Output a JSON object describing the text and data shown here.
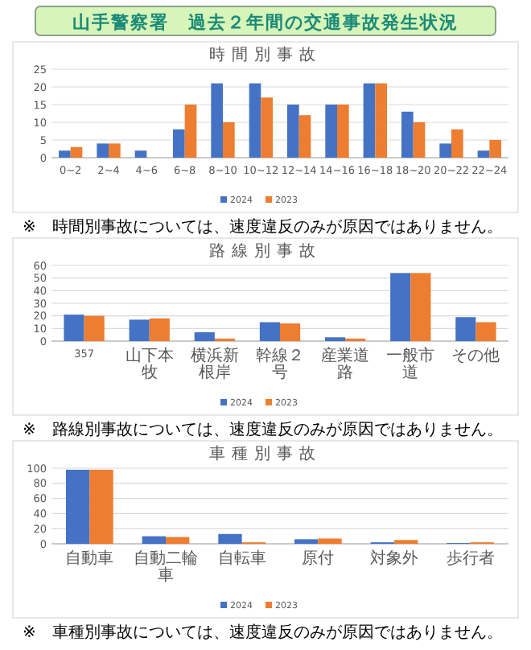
{
  "chart_data": [
    {
      "type": "bar",
      "title": "山手警察署　過去２年間の交通事故発生状況",
      "subtitle": "時間別事故",
      "categories": [
        "0~2",
        "2~4",
        "4~6",
        "6~8",
        "8~10",
        "10~12",
        "12~14",
        "14~16",
        "16~18",
        "18~20",
        "20~22",
        "22~24"
      ],
      "series": [
        {
          "name": "2024",
          "color": "#4472c4",
          "values": [
            2,
            4,
            2,
            8,
            21,
            21,
            15,
            15,
            21,
            13,
            4,
            2
          ]
        },
        {
          "name": "2023",
          "color": "#ed7d31",
          "values": [
            3,
            4,
            0,
            15,
            10,
            17,
            12,
            15,
            21,
            10,
            8,
            5
          ]
        }
      ],
      "ylim": [
        0,
        25
      ],
      "yticks": [
        0,
        5,
        10,
        15,
        20,
        25
      ],
      "grid": "y",
      "legend": "bottom",
      "annotations": [
        "※　時間別事故については、速度違反のみが原因ではありません。"
      ]
    },
    {
      "type": "bar",
      "subtitle": "路線別事故",
      "categories": [
        "357",
        "山下本牧",
        "横浜新根岸",
        "幹線２号",
        "産業道路",
        "一般市道",
        "その他"
      ],
      "series": [
        {
          "name": "2024",
          "color": "#4472c4",
          "values": [
            21,
            17,
            7,
            15,
            3,
            54,
            19
          ]
        },
        {
          "name": "2023",
          "color": "#ed7d31",
          "values": [
            20,
            18,
            2,
            14,
            2,
            54,
            15
          ]
        }
      ],
      "ylim": [
        0,
        60
      ],
      "yticks": [
        0,
        10,
        20,
        30,
        40,
        50,
        60
      ],
      "grid": "y",
      "legend": "bottom",
      "annotations": [
        "※　路線別事故については、速度違反のみが原因ではありません。"
      ]
    },
    {
      "type": "bar",
      "subtitle": "車種別事故",
      "categories": [
        "自動車",
        "自動二輪車",
        "自転車",
        "原付",
        "対象外",
        "歩行者"
      ],
      "series": [
        {
          "name": "2024",
          "color": "#4472c4",
          "values": [
            98,
            10,
            13,
            6,
            2,
            1
          ]
        },
        {
          "name": "2023",
          "color": "#ed7d31",
          "values": [
            98,
            9,
            2,
            7,
            5,
            2
          ]
        }
      ],
      "ylim": [
        0,
        100
      ],
      "yticks": [
        0,
        20,
        40,
        60,
        80,
        100
      ],
      "grid": "y",
      "legend": "bottom",
      "annotations": [
        "※　車種別事故については、速度違反のみが原因ではありません。"
      ]
    }
  ]
}
